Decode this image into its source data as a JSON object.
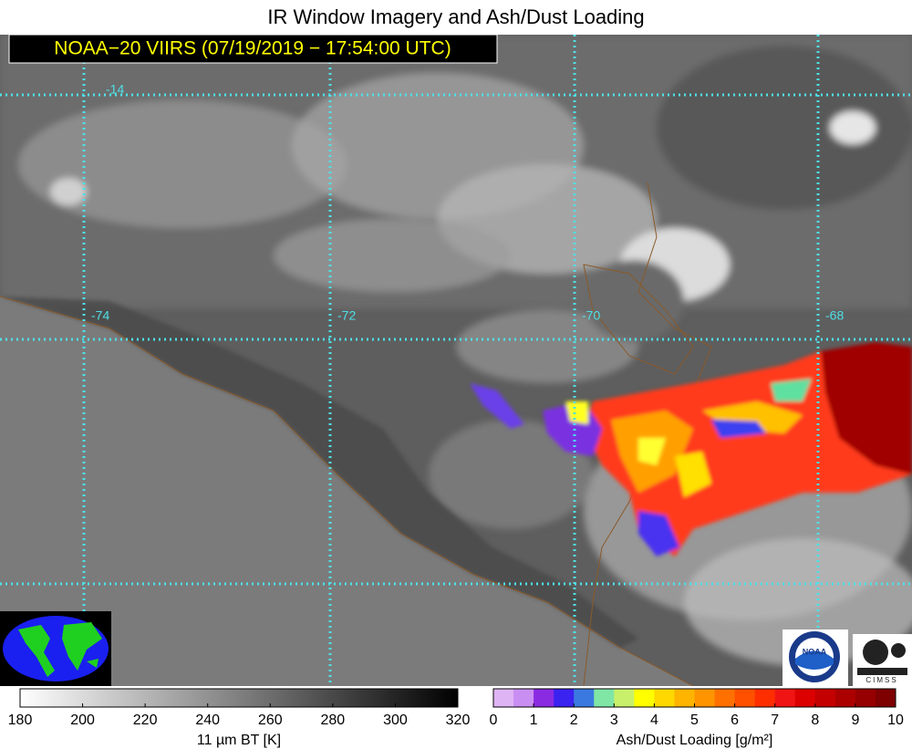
{
  "title": "IR Window Imagery and Ash/Dust Loading",
  "subtitle": "NOAA−20 VIIRS (07/19/2019 − 17:54:00 UTC)",
  "map": {
    "grid_labels": [
      "-14",
      "-74",
      "-72",
      "-70",
      "-68"
    ]
  },
  "colorbars": [
    {
      "label": "11 µm BT [K]",
      "range": [
        180,
        320
      ],
      "ticks": [
        180,
        200,
        220,
        240,
        260,
        280,
        300,
        320
      ],
      "gradient": [
        "#ffffff",
        "#000000"
      ]
    },
    {
      "label": "Ash/Dust Loading [g/m²]",
      "range": [
        0,
        10
      ],
      "ticks": [
        0,
        1,
        2,
        3,
        4,
        5,
        6,
        7,
        8,
        9,
        10
      ],
      "colors": [
        "#deb4f4",
        "#c98ef2",
        "#8a2be2",
        "#3a22f0",
        "#3a7ae0",
        "#7fe6a6",
        "#c8f06a",
        "#ffff00",
        "#ffd800",
        "#ffb400",
        "#ff9400",
        "#ff7000",
        "#ff5000",
        "#ff2e00",
        "#f01414",
        "#dc0000",
        "#c40000",
        "#ac0000",
        "#960000",
        "#7e0000"
      ]
    }
  ],
  "logos": {
    "noaa": "NOAA",
    "cimss": "CIMSS"
  }
}
